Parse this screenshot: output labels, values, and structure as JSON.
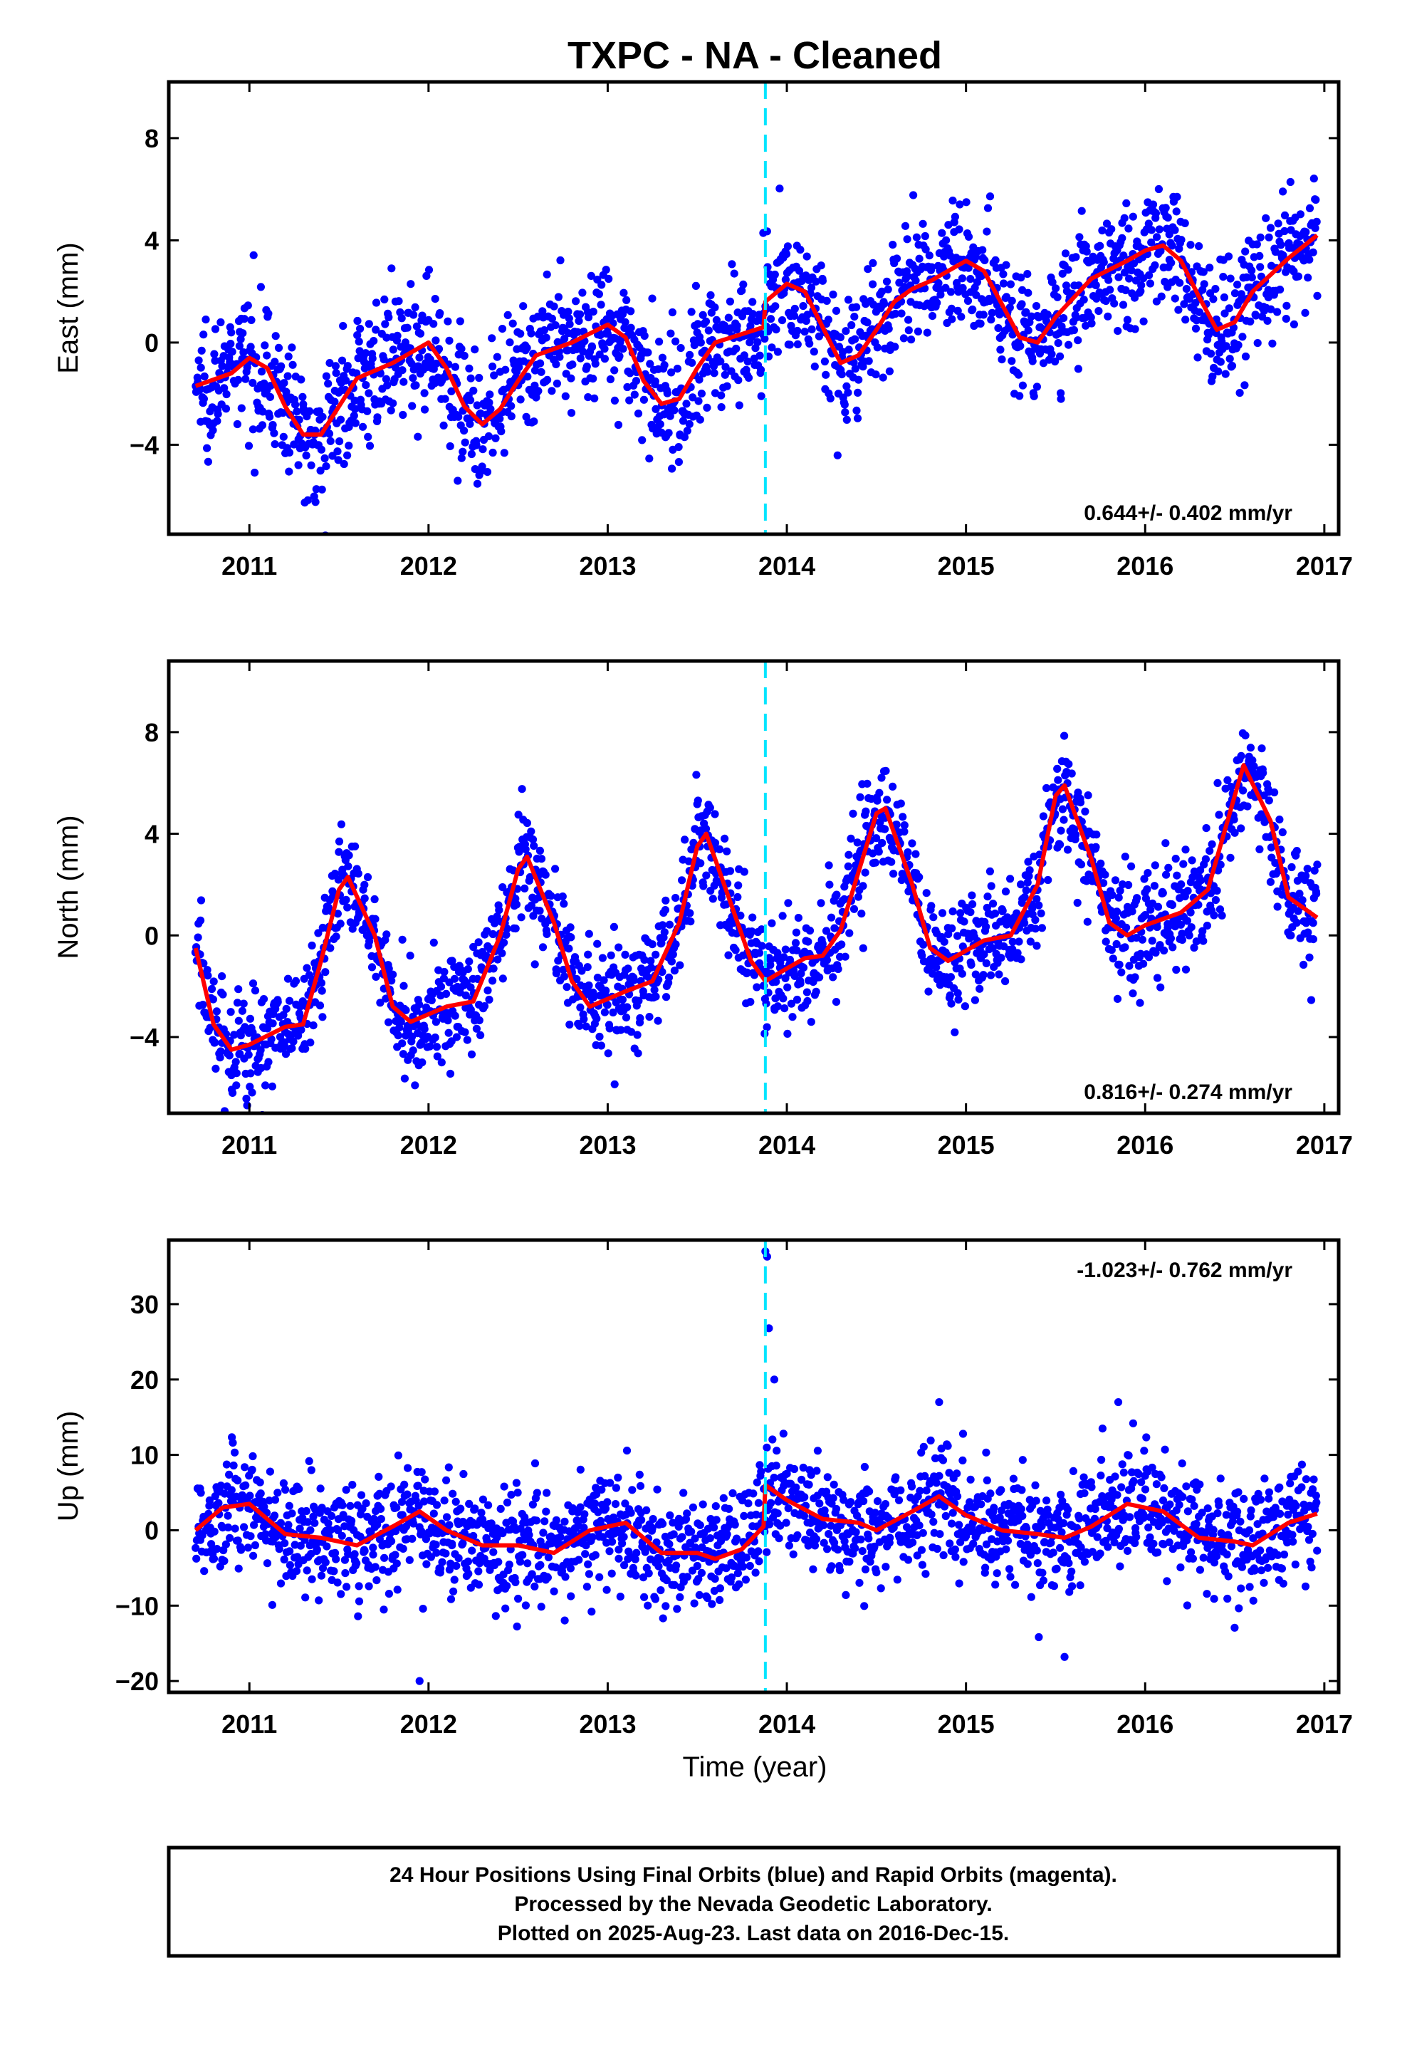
{
  "title": "TXPC  - NA - Cleaned",
  "colors": {
    "points": "#0000ff",
    "trend": "#ff0000",
    "event_line": "#00e5ff",
    "frame": "#000000"
  },
  "x_axis": {
    "label": "Time (year)",
    "ticks": [
      2011,
      2012,
      2013,
      2014,
      2015,
      2016,
      2017
    ],
    "range": [
      2010.55,
      2017.08
    ]
  },
  "event_line_x": 2013.88,
  "caption": [
    "24 Hour Positions Using Final Orbits (blue) and Rapid Orbits (magenta).",
    "Processed by the Nevada Geodetic Laboratory.",
    "Plotted on 2025-Aug-23. Last data on 2016-Dec-15."
  ],
  "chart_data": [
    {
      "type": "scatter",
      "ylabel": "East (mm)",
      "rate": "0.644+/- 0.402 mm/yr",
      "ylim": [
        -7.5,
        10.2
      ],
      "yticks": [
        -4,
        0,
        4,
        8
      ],
      "y_tick_labels": [
        "−4",
        "0",
        "4",
        "8"
      ],
      "x_data_range": [
        2010.7,
        2016.96
      ],
      "scatter_noise": 1.25,
      "trend": {
        "x": [
          2010.7,
          2010.9,
          2011.0,
          2011.1,
          2011.2,
          2011.3,
          2011.4,
          2011.5,
          2011.6,
          2011.8,
          2012.0,
          2012.1,
          2012.2,
          2012.3,
          2012.4,
          2012.5,
          2012.6,
          2012.8,
          2013.0,
          2013.1,
          2013.2,
          2013.3,
          2013.4,
          2013.5,
          2013.6,
          2013.87,
          2013.88,
          2014.0,
          2014.1,
          2014.2,
          2014.3,
          2014.4,
          2014.5,
          2014.6,
          2014.7,
          2014.8,
          2014.9,
          2015.0,
          2015.1,
          2015.2,
          2015.3,
          2015.4,
          2015.5,
          2015.7,
          2015.9,
          2016.0,
          2016.1,
          2016.2,
          2016.3,
          2016.4,
          2016.5,
          2016.6,
          2016.8,
          2016.96
        ],
        "y": [
          -1.7,
          -1.2,
          -0.6,
          -1.0,
          -2.5,
          -3.6,
          -3.6,
          -2.5,
          -1.4,
          -0.8,
          0.0,
          -1.0,
          -2.5,
          -3.2,
          -2.6,
          -1.5,
          -0.5,
          0.0,
          0.7,
          0.2,
          -1.5,
          -2.4,
          -2.2,
          -1.0,
          0.0,
          0.6,
          1.6,
          2.3,
          2.0,
          0.6,
          -0.8,
          -0.5,
          0.5,
          1.6,
          2.1,
          2.4,
          2.8,
          3.2,
          2.8,
          1.5,
          0.2,
          0.0,
          1.0,
          2.5,
          3.2,
          3.6,
          3.8,
          3.2,
          1.8,
          0.5,
          0.8,
          2.0,
          3.3,
          4.2
        ]
      }
    },
    {
      "type": "scatter",
      "ylabel": "North (mm)",
      "rate": "0.816+/- 0.274 mm/yr",
      "ylim": [
        -7.0,
        10.8
      ],
      "yticks": [
        -4,
        0,
        4,
        8
      ],
      "y_tick_labels": [
        "−4",
        "0",
        "4",
        "8"
      ],
      "x_data_range": [
        2010.7,
        2016.96
      ],
      "scatter_noise": 1.1,
      "trend": {
        "x": [
          2010.7,
          2010.8,
          2010.9,
          2011.0,
          2011.2,
          2011.3,
          2011.4,
          2011.5,
          2011.55,
          2011.7,
          2011.8,
          2011.9,
          2012.1,
          2012.25,
          2012.4,
          2012.5,
          2012.55,
          2012.7,
          2012.8,
          2012.9,
          2013.1,
          2013.25,
          2013.4,
          2013.5,
          2013.55,
          2013.7,
          2013.8,
          2013.88,
          2014.0,
          2014.1,
          2014.2,
          2014.3,
          2014.4,
          2014.5,
          2014.55,
          2014.7,
          2014.8,
          2014.9,
          2015.1,
          2015.25,
          2015.4,
          2015.5,
          2015.55,
          2015.7,
          2015.8,
          2015.9,
          2016.0,
          2016.2,
          2016.35,
          2016.5,
          2016.55,
          2016.7,
          2016.8,
          2016.96
        ],
        "y": [
          -0.5,
          -3.5,
          -4.5,
          -4.3,
          -3.6,
          -3.5,
          -1.0,
          1.8,
          2.3,
          0.0,
          -2.8,
          -3.4,
          -2.8,
          -2.6,
          0.0,
          2.6,
          3.1,
          0.5,
          -1.8,
          -2.8,
          -2.2,
          -1.8,
          0.5,
          3.5,
          4.0,
          1.0,
          -1.0,
          -1.8,
          -1.3,
          -0.9,
          -0.8,
          0.2,
          2.5,
          4.8,
          5.0,
          2.0,
          -0.5,
          -1.0,
          -0.2,
          0.0,
          2.0,
          5.5,
          5.9,
          3.0,
          0.5,
          0.0,
          0.4,
          0.9,
          1.8,
          5.5,
          6.7,
          4.5,
          1.5,
          0.7
        ]
      }
    },
    {
      "type": "scatter",
      "ylabel": "Up (mm)",
      "rate": "-1.023+/- 0.762 mm/yr",
      "ylim": [
        -21.5,
        38.5
      ],
      "yticks": [
        -20,
        -10,
        0,
        10,
        20,
        30
      ],
      "y_tick_labels": [
        "−20",
        "−10",
        "0",
        "10",
        "20",
        "30"
      ],
      "x_data_range": [
        2010.7,
        2016.96
      ],
      "scatter_noise": 3.8,
      "outliers": [
        {
          "x": 2011.95,
          "y": -20.0
        },
        {
          "x": 2013.88,
          "y": 37.0
        },
        {
          "x": 2013.89,
          "y": 36.3
        },
        {
          "x": 2013.9,
          "y": 26.8
        },
        {
          "x": 2013.93,
          "y": 20.0
        },
        {
          "x": 2015.55,
          "y": -16.8
        },
        {
          "x": 2015.85,
          "y": 17.0
        },
        {
          "x": 2014.85,
          "y": 17.0
        }
      ],
      "trend": {
        "x": [
          2010.7,
          2010.85,
          2011.0,
          2011.2,
          2011.4,
          2011.6,
          2011.8,
          2011.95,
          2012.1,
          2012.3,
          2012.5,
          2012.7,
          2012.9,
          2013.1,
          2013.3,
          2013.5,
          2013.6,
          2013.75,
          2013.87,
          2013.88,
          2014.0,
          2014.2,
          2014.4,
          2014.5,
          2014.7,
          2014.85,
          2015.0,
          2015.2,
          2015.4,
          2015.55,
          2015.7,
          2015.9,
          2016.1,
          2016.3,
          2016.5,
          2016.6,
          2016.8,
          2016.96
        ],
        "y": [
          0.0,
          3.0,
          3.5,
          -0.5,
          -1.0,
          -2.0,
          0.5,
          2.5,
          0.0,
          -2.0,
          -2.0,
          -3.0,
          0.0,
          1.0,
          -3.0,
          -3.0,
          -3.8,
          -2.5,
          0.5,
          6.0,
          4.0,
          1.5,
          1.0,
          0.0,
          2.5,
          4.5,
          2.0,
          0.0,
          -0.5,
          -1.0,
          0.5,
          3.5,
          2.5,
          -1.0,
          -1.5,
          -2.0,
          1.0,
          2.2
        ]
      }
    }
  ]
}
